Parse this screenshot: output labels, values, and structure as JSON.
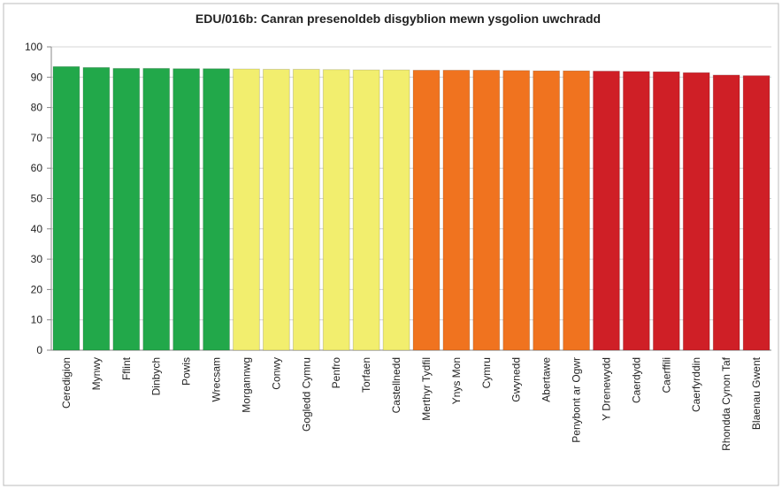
{
  "chart_data": {
    "type": "bar",
    "title": "EDU/016b: Canran presenoldeb disgyblion mewn ysgolion uwchradd",
    "categories": [
      "Ceredigion",
      "Mynwy",
      "Fflint",
      "Dinbych",
      "Powis",
      "Wrecsam",
      "Morgannwg",
      "Conwy",
      "Gogledd Cymru",
      "Penfro",
      "Torfaen",
      "Castellnedd",
      "Merthyr Tydfil",
      "Ynys Mon",
      "Cymru",
      "Gwynedd",
      "Abertawe",
      "Penybont ar Ogwr",
      "Y Drenewydd",
      "Caerdydd",
      "Caerffili",
      "Caerfyrddin",
      "Rhondda Cynon Taf",
      "Blaenau Gwent"
    ],
    "values": [
      93.5,
      93.2,
      92.9,
      92.9,
      92.8,
      92.8,
      92.7,
      92.6,
      92.6,
      92.5,
      92.4,
      92.4,
      92.3,
      92.3,
      92.3,
      92.2,
      92.1,
      92.1,
      92.0,
      91.9,
      91.8,
      91.5,
      90.7,
      90.5
    ],
    "colors": [
      "#22a84a",
      "#22a84a",
      "#22a84a",
      "#22a84a",
      "#22a84a",
      "#22a84a",
      "#f2ee6e",
      "#f2ee6e",
      "#f2ee6e",
      "#f2ee6e",
      "#f2ee6e",
      "#f2ee6e",
      "#f0731f",
      "#f0731f",
      "#f0731f",
      "#f0731f",
      "#f0731f",
      "#f0731f",
      "#cf1f26",
      "#cf1f26",
      "#cf1f26",
      "#cf1f26",
      "#cf1f26",
      "#cf1f26"
    ],
    "ylim": [
      0,
      100
    ],
    "yticks": [
      0,
      10,
      20,
      30,
      40,
      50,
      60,
      70,
      80,
      90,
      100
    ],
    "grid": true
  }
}
